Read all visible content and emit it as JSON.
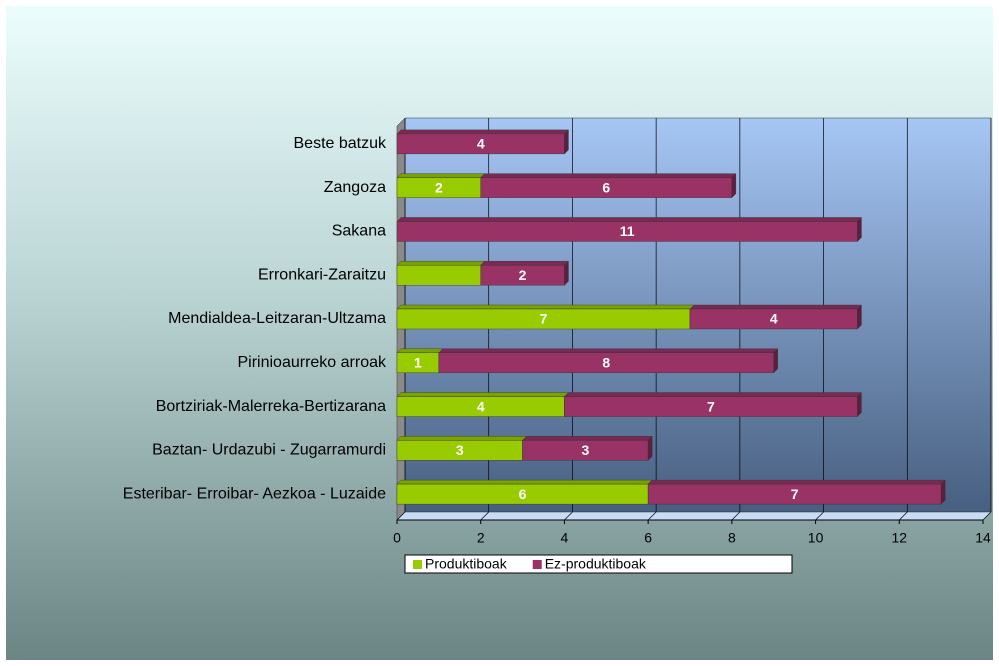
{
  "chart_data": {
    "type": "hbar_stacked",
    "categories": [
      "Beste batzuk",
      "Zangoza",
      "Sakana",
      "Erronkari-Zaraitzu",
      "Mendialdea-Leitzaran-Ultzama",
      "Pirinioaurreko arroak",
      "Bortziriak-Malerreka-Bertizarana",
      "Baztan- Urdazubi - Zugarramurdi",
      "Esteribar- Erroibar- Aezkoa - Luzaide"
    ],
    "series": [
      {
        "name": "Produktiboak",
        "color": "#99cc00",
        "values": [
          null,
          2,
          null,
          2,
          7,
          1,
          4,
          3,
          6
        ],
        "value_labels": [
          null,
          "2",
          null,
          null,
          "7",
          "1",
          "4",
          "3",
          "6"
        ]
      },
      {
        "name": "Ez-produktiboak",
        "color": "#993366",
        "values": [
          4,
          6,
          11,
          2,
          4,
          8,
          7,
          3,
          7
        ],
        "value_labels": [
          "4",
          "6",
          "11",
          "2",
          "4",
          "8",
          "7",
          "3",
          "7"
        ]
      }
    ],
    "xlim": [
      0,
      14
    ],
    "xticks": [
      0,
      2,
      4,
      6,
      8,
      10,
      12,
      14
    ],
    "grid": true,
    "legend": "bottom"
  }
}
